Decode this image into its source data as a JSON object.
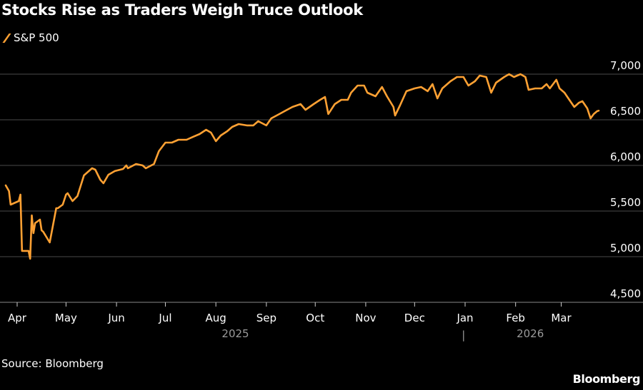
{
  "chart_data": {
    "type": "line",
    "title": "Stocks Rise as Traders Weigh Truce Outlook",
    "source": "Source: Bloomberg",
    "brand": "Bloomberg",
    "x_unit": "days since 2025-04-01",
    "xlabel": "",
    "ylabel": "",
    "ylim": [
      4500,
      7000
    ],
    "yticks": [
      4500,
      5000,
      5500,
      6000,
      6500,
      7000
    ],
    "ytick_labels": [
      "4,500",
      "5,000",
      "5,500",
      "6,000",
      "6,500",
      "7,000"
    ],
    "xticks": [
      {
        "day": 0,
        "label": "Apr"
      },
      {
        "day": 30,
        "label": "May"
      },
      {
        "day": 61,
        "label": "Jun"
      },
      {
        "day": 91,
        "label": "Jul"
      },
      {
        "day": 122,
        "label": "Aug"
      },
      {
        "day": 153,
        "label": "Sep"
      },
      {
        "day": 183,
        "label": "Oct"
      },
      {
        "day": 214,
        "label": "Nov"
      },
      {
        "day": 244,
        "label": "Dec"
      },
      {
        "day": 275,
        "label": "Jan"
      },
      {
        "day": 306,
        "label": "Feb"
      },
      {
        "day": 334,
        "label": "Mar"
      }
    ],
    "years": [
      {
        "label": "2025",
        "day": 134
      },
      {
        "label": "2026",
        "day": 315
      }
    ],
    "year_separator": {
      "day": 274,
      "label": "|"
    },
    "grid": true,
    "legend_position": "top-left",
    "series": [
      {
        "name": "S&P 500",
        "color": "#ffa133",
        "points": [
          [
            -7,
            5781
          ],
          [
            -5,
            5719
          ],
          [
            -4,
            5570
          ],
          [
            1,
            5609
          ],
          [
            2,
            5680
          ],
          [
            3,
            5063
          ],
          [
            7,
            5063
          ],
          [
            8,
            4977
          ],
          [
            9,
            5453
          ],
          [
            10,
            5258
          ],
          [
            11,
            5367
          ],
          [
            14,
            5406
          ],
          [
            15,
            5289
          ],
          [
            16,
            5273
          ],
          [
            20,
            5156
          ],
          [
            24,
            5531
          ],
          [
            25,
            5531
          ],
          [
            28,
            5570
          ],
          [
            30,
            5680
          ],
          [
            31,
            5695
          ],
          [
            34,
            5609
          ],
          [
            37,
            5664
          ],
          [
            41,
            5891
          ],
          [
            43,
            5922
          ],
          [
            46,
            5969
          ],
          [
            48,
            5953
          ],
          [
            51,
            5844
          ],
          [
            53,
            5805
          ],
          [
            56,
            5898
          ],
          [
            60,
            5938
          ],
          [
            65,
            5961
          ],
          [
            67,
            6000
          ],
          [
            68,
            5969
          ],
          [
            73,
            6016
          ],
          [
            77,
            6000
          ],
          [
            79,
            5969
          ],
          [
            84,
            6016
          ],
          [
            87,
            6156
          ],
          [
            91,
            6250
          ],
          [
            95,
            6250
          ],
          [
            99,
            6281
          ],
          [
            104,
            6281
          ],
          [
            108,
            6313
          ],
          [
            112,
            6344
          ],
          [
            116,
            6391
          ],
          [
            119,
            6359
          ],
          [
            122,
            6266
          ],
          [
            125,
            6328
          ],
          [
            129,
            6375
          ],
          [
            132,
            6422
          ],
          [
            136,
            6453
          ],
          [
            141,
            6438
          ],
          [
            145,
            6438
          ],
          [
            148,
            6484
          ],
          [
            153,
            6438
          ],
          [
            156,
            6516
          ],
          [
            161,
            6563
          ],
          [
            165,
            6602
          ],
          [
            169,
            6641
          ],
          [
            174,
            6672
          ],
          [
            177,
            6609
          ],
          [
            182,
            6672
          ],
          [
            186,
            6719
          ],
          [
            189,
            6750
          ],
          [
            191,
            6563
          ],
          [
            195,
            6672
          ],
          [
            199,
            6719
          ],
          [
            203,
            6719
          ],
          [
            205,
            6797
          ],
          [
            209,
            6875
          ],
          [
            213,
            6875
          ],
          [
            215,
            6797
          ],
          [
            220,
            6758
          ],
          [
            224,
            6859
          ],
          [
            227,
            6758
          ],
          [
            231,
            6641
          ],
          [
            232,
            6547
          ],
          [
            235,
            6656
          ],
          [
            239,
            6813
          ],
          [
            244,
            6844
          ],
          [
            248,
            6859
          ],
          [
            252,
            6813
          ],
          [
            255,
            6891
          ],
          [
            258,
            6734
          ],
          [
            261,
            6844
          ],
          [
            266,
            6922
          ],
          [
            270,
            6969
          ],
          [
            274,
            6969
          ],
          [
            277,
            6875
          ],
          [
            281,
            6922
          ],
          [
            284,
            6984
          ],
          [
            288,
            6969
          ],
          [
            291,
            6797
          ],
          [
            294,
            6906
          ],
          [
            299,
            6969
          ],
          [
            302,
            7000
          ],
          [
            305,
            6969
          ],
          [
            309,
            7000
          ],
          [
            312,
            6969
          ],
          [
            314,
            6828
          ],
          [
            318,
            6844
          ],
          [
            322,
            6844
          ],
          [
            325,
            6891
          ],
          [
            327,
            6844
          ],
          [
            331,
            6938
          ],
          [
            333,
            6844
          ],
          [
            336,
            6797
          ],
          [
            339,
            6719
          ],
          [
            342,
            6641
          ],
          [
            345,
            6688
          ],
          [
            347,
            6703
          ],
          [
            350,
            6625
          ],
          [
            352,
            6516
          ],
          [
            354,
            6563
          ],
          [
            356,
            6594
          ],
          [
            357,
            6600
          ]
        ]
      }
    ]
  }
}
